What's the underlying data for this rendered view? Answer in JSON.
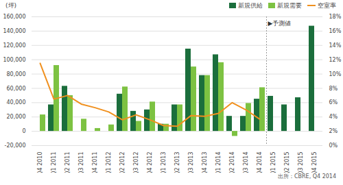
{
  "chart_data": {
    "type": "bar",
    "y_label": "(坪)",
    "annotation": "▶予測値",
    "source": "出所：CBRE, Q4 2014",
    "categories": [
      "Q4 2010",
      "Q1 2011",
      "Q2 2011",
      "Q3 2011",
      "Q4 2011",
      "Q1 2012",
      "Q2 2012",
      "Q3 2012",
      "Q4 2012",
      "Q1 2013",
      "Q2 2013",
      "Q3 2013",
      "Q4 2013",
      "Q1 2014",
      "Q2 2014",
      "Q3 2014",
      "Q4 2014",
      "Q1 2015",
      "Q2 2015",
      "Q3 2015",
      "Q4 2015"
    ],
    "series": [
      {
        "name": "新規供給",
        "type": "bar",
        "color": "#1b6e3c",
        "values": [
          0,
          37000,
          63000,
          0,
          0,
          0,
          52000,
          28000,
          30000,
          10000,
          37000,
          115000,
          78000,
          107000,
          21000,
          21000,
          45000,
          49000,
          37000,
          47000,
          147000
        ]
      },
      {
        "name": "新規需要",
        "type": "bar",
        "color": "#7dc242",
        "values": [
          23000,
          92000,
          50000,
          17000,
          4000,
          9000,
          62000,
          14000,
          41000,
          10000,
          37000,
          90000,
          78000,
          96000,
          -7000,
          39000,
          61000,
          null,
          null,
          null,
          null
        ]
      },
      {
        "name": "空室率",
        "type": "line",
        "color": "#f0901e",
        "axis": "y2",
        "values": [
          11.5,
          6.5,
          7.0,
          5.8,
          5.3,
          4.7,
          3.6,
          4.3,
          3.6,
          2.8,
          2.7,
          4.2,
          4.1,
          4.5,
          6.0,
          5.0,
          3.7,
          null,
          null,
          null,
          null
        ]
      }
    ],
    "ylim": [
      -20000,
      160000
    ],
    "yticks": [
      {
        "value": -20000,
        "label": "-20,000"
      },
      0,
      {
        "value": 20000,
        "label": "20,000"
      },
      {
        "value": 40000,
        "label": "40,000"
      },
      {
        "value": 60000,
        "label": "60,000"
      },
      {
        "value": 80000,
        "label": "80,000"
      },
      {
        "value": 100000,
        "label": "100,000"
      },
      {
        "value": 120000,
        "label": "120,000"
      },
      {
        "value": 140000,
        "label": "140,000"
      },
      {
        "value": 160000,
        "label": "160,000"
      }
    ],
    "y2lim": [
      0,
      18
    ],
    "y2ticks": [
      {
        "value": 0,
        "label": "0%"
      },
      {
        "value": 2,
        "label": "2%"
      },
      {
        "value": 4,
        "label": "4%"
      },
      {
        "value": 6,
        "label": "6%"
      },
      {
        "value": 8,
        "label": "8%"
      },
      {
        "value": 10,
        "label": "10%"
      },
      {
        "value": 12,
        "label": "12%"
      },
      {
        "value": 14,
        "label": "14%"
      },
      {
        "value": 16,
        "label": "16%"
      },
      {
        "value": 18,
        "label": "18%"
      }
    ],
    "grid": true,
    "legend": "top-right"
  }
}
